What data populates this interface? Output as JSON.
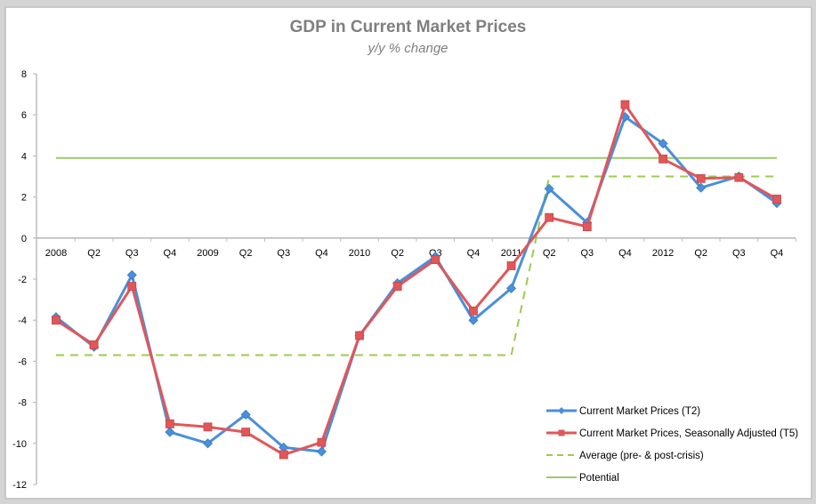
{
  "chart_data": {
    "type": "line",
    "title": "GDP in Current Market Prices",
    "subtitle": "y/y % change",
    "xlabel": "",
    "ylabel": "",
    "ylim": [
      -12,
      8
    ],
    "yticks": [
      8,
      6,
      4,
      2,
      0,
      -2,
      -4,
      -6,
      -8,
      -10,
      -12
    ],
    "grid": false,
    "legend_position": "lower right",
    "categories": [
      "2008",
      "Q2",
      "Q3",
      "Q4",
      "2009",
      "Q2",
      "Q3",
      "Q4",
      "2010",
      "Q2",
      "Q3",
      "Q4",
      "2011",
      "Q2",
      "Q3",
      "Q4",
      "2012",
      "Q2",
      "Q3",
      "Q4"
    ],
    "series": [
      {
        "name": "Current Market Prices (T2)",
        "color": "#4A8FDA",
        "marker": "diamond",
        "style": "solid",
        "values": [
          -3.85,
          -5.3,
          -1.8,
          -9.45,
          -10.0,
          -8.6,
          -10.2,
          -10.4,
          -4.75,
          -2.2,
          -0.9,
          -4.0,
          -2.45,
          2.4,
          0.75,
          5.9,
          4.6,
          2.45,
          3.0,
          1.7
        ]
      },
      {
        "name": "Current Market Prices, Seasonally Adjusted (T5)",
        "color": "#E0575A",
        "marker": "square",
        "style": "solid",
        "values": [
          -4.0,
          -5.2,
          -2.35,
          -9.05,
          -9.2,
          -9.45,
          -10.55,
          -9.95,
          -4.75,
          -2.35,
          -1.05,
          -3.55,
          -1.35,
          1.0,
          0.55,
          6.5,
          3.85,
          2.9,
          2.95,
          1.9
        ]
      },
      {
        "name": "Average (pre- & post-crisis)",
        "color": "#9BCB52",
        "marker": "none",
        "style": "dashed",
        "values": [
          -5.7,
          -5.7,
          -5.7,
          -5.7,
          -5.7,
          -5.7,
          -5.7,
          -5.7,
          -5.7,
          -5.7,
          -5.7,
          -5.7,
          -5.7,
          3.0,
          3.0,
          3.0,
          3.0,
          3.0,
          3.0,
          3.0
        ]
      },
      {
        "name": "Potential",
        "color": "#9BCB6A",
        "marker": "none",
        "style": "solid",
        "values": [
          3.9,
          3.9,
          3.9,
          3.9,
          3.9,
          3.9,
          3.9,
          3.9,
          3.9,
          3.9,
          3.9,
          3.9,
          3.9,
          3.9,
          3.9,
          3.9,
          3.9,
          3.9,
          3.9,
          3.9
        ]
      }
    ]
  }
}
